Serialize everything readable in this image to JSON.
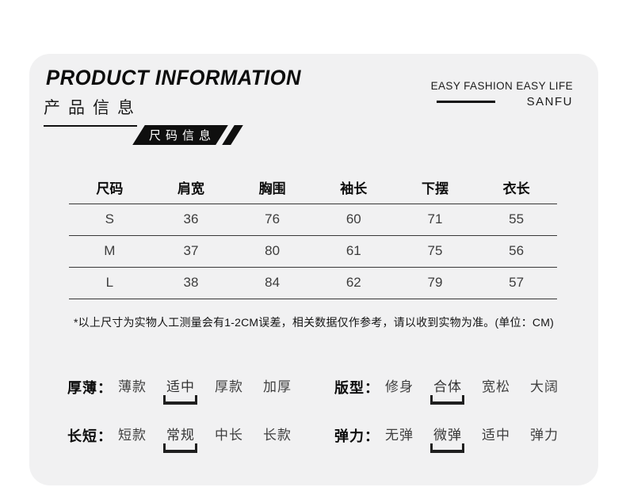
{
  "header": {
    "title_en": "PRODUCT INFORMATION",
    "title_cn": "产品信息",
    "tagline": "EASY FASHION EASY LIFE",
    "brand": "SANFU"
  },
  "section_banner": {
    "label": "尺码信息"
  },
  "size_table": {
    "columns": [
      "尺码",
      "肩宽",
      "胸围",
      "袖长",
      "下摆",
      "衣长"
    ],
    "rows": [
      [
        "S",
        "36",
        "76",
        "60",
        "71",
        "55"
      ],
      [
        "M",
        "37",
        "80",
        "61",
        "75",
        "56"
      ],
      [
        "L",
        "38",
        "84",
        "62",
        "79",
        "57"
      ]
    ],
    "unit": "CM"
  },
  "note": "*以上尺寸为实物人工测量会有1-2CM误差，相关数据仅作参考，请以收到实物为准。(单位：CM)",
  "attributes": [
    {
      "label": "厚薄：",
      "options": [
        "薄款",
        "适中",
        "厚款",
        "加厚"
      ],
      "selected_index": 1
    },
    {
      "label": "版型：",
      "options": [
        "修身",
        "合体",
        "宽松",
        "大阔"
      ],
      "selected_index": 1
    },
    {
      "label": "长短：",
      "options": [
        "短款",
        "常规",
        "中长",
        "长款"
      ],
      "selected_index": 1
    },
    {
      "label": "弹力：",
      "options": [
        "无弹",
        "微弹",
        "适中",
        "弹力"
      ],
      "selected_index": 1
    }
  ],
  "colors": {
    "card_bg": "#f1f1f2",
    "banner_bg": "#0f0f0f",
    "banner_text": "#ffffff",
    "text_primary": "#0d0d0d",
    "text_secondary": "#3d3d3d",
    "table_line": "#383838",
    "underline": "#1f1f1f"
  }
}
